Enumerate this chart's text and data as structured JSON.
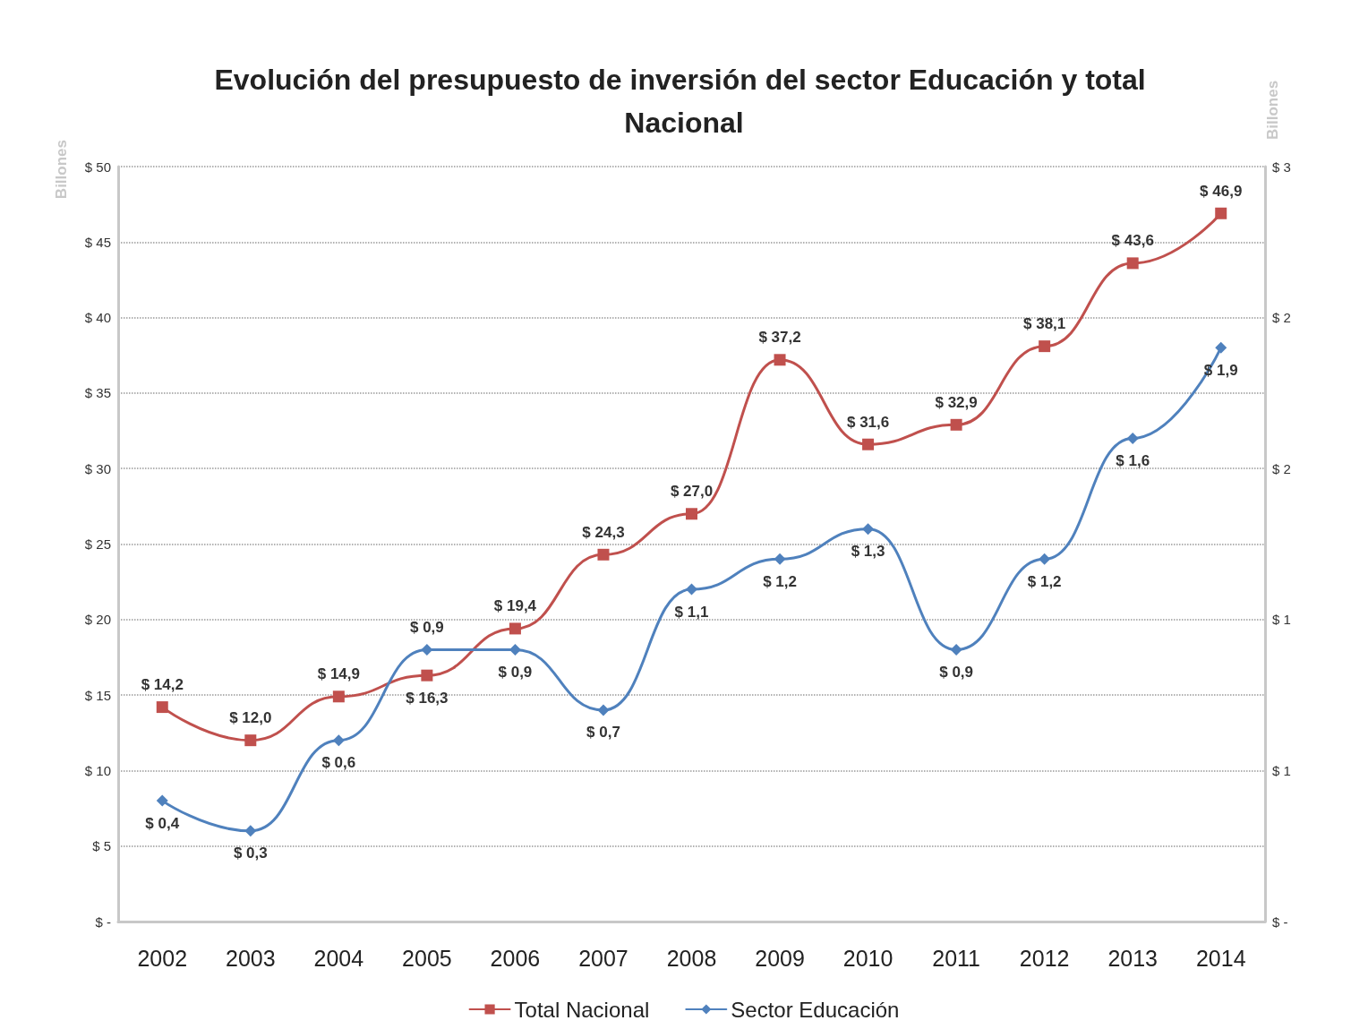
{
  "chart_data": {
    "type": "line",
    "title": "Evolución del presupuesto de inversión del sector Educación y total Nacional",
    "ylabel": "Billones",
    "y2label": "Billones",
    "categories": [
      "2002",
      "2003",
      "2004",
      "2005",
      "2006",
      "2007",
      "2008",
      "2009",
      "2010",
      "2011",
      "2012",
      "2013",
      "2014"
    ],
    "series": [
      {
        "name": "Total Nacional",
        "color": "#c0504d",
        "marker": "square",
        "values": [
          14.2,
          12.0,
          14.9,
          16.3,
          19.4,
          24.3,
          27.0,
          37.2,
          31.6,
          32.9,
          38.1,
          43.6,
          46.9
        ],
        "value_labels": [
          "$ 14,2",
          "$ 12,0",
          "$ 14,9",
          "$ 16,3",
          "$ 19,4",
          "$ 24,3",
          "$ 27,0",
          "$ 37,2",
          "$ 31,6",
          "$ 32,9",
          "$ 38,1",
          "$ 43,6",
          "$ 46,9"
        ]
      },
      {
        "name": "Sector Educación",
        "color": "#4f81bd",
        "marker": "diamond",
        "axis": "y2",
        "values": [
          0.4,
          0.3,
          0.6,
          0.9,
          0.9,
          0.7,
          1.1,
          1.2,
          1.3,
          0.9,
          1.2,
          1.6,
          1.9
        ],
        "value_labels": [
          "$ 0,4",
          "$ 0,3",
          "$ 0,6",
          "$ 0,9",
          "$ 0,9",
          "$ 0,7",
          "$ 1,1",
          "$ 1,2",
          "$ 1,3",
          "$ 0,9",
          "$ 1,2",
          "$ 1,6",
          "$ 1,9"
        ]
      }
    ],
    "ylim": [
      0,
      50
    ],
    "yticks": [
      {
        "value": 0,
        "label": "$ -"
      },
      {
        "value": 5,
        "label": "$ 5"
      },
      {
        "value": 10,
        "label": "$ 10"
      },
      {
        "value": 15,
        "label": "$ 15"
      },
      {
        "value": 20,
        "label": "$ 20"
      },
      {
        "value": 25,
        "label": "$ 25"
      },
      {
        "value": 30,
        "label": "$ 30"
      },
      {
        "value": 35,
        "label": "$ 35"
      },
      {
        "value": 40,
        "label": "$ 40"
      },
      {
        "value": 45,
        "label": "$ 45"
      },
      {
        "value": 50,
        "label": "$ 50"
      }
    ],
    "y2lim": [
      0,
      2.5
    ],
    "y2ticks": [
      {
        "value": 0,
        "label": "$ -"
      },
      {
        "value": 0.5,
        "label": "$ 1"
      },
      {
        "value": 1,
        "label": "$ 1"
      },
      {
        "value": 1.5,
        "label": "$ 2"
      },
      {
        "value": 2,
        "label": "$ 2"
      },
      {
        "value": 2.5,
        "label": "$ 3"
      }
    ],
    "grid": "y",
    "legend": "bottom",
    "line_style": "solid"
  }
}
